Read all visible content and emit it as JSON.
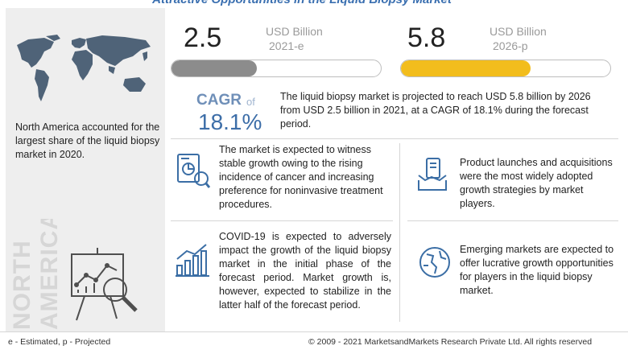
{
  "title": "Attractive Opportunities in the Liquid Biopsy Market",
  "chart_data": {
    "type": "bar",
    "categories": [
      "2021-e",
      "2026-p"
    ],
    "values": [
      2.5,
      5.8
    ],
    "unit": "USD Billion",
    "colors": [
      "#8c8c8c",
      "#f2bd1d"
    ]
  },
  "metrics": {
    "start": {
      "value": "2.5",
      "unit": "USD Billion",
      "year": "2021-e"
    },
    "end": {
      "value": "5.8",
      "unit": "USD Billion",
      "year": "2026-p"
    }
  },
  "cagr": {
    "label": "CAGR",
    "of": "of",
    "value": "18.1%",
    "summary": "The liquid biopsy market is projected to reach USD 5.8 billion by 2026 from USD 2.5 billion in 2021, at a CAGR of 18.1% during the forecast period."
  },
  "region": {
    "text": "North America accounted for the largest share of the liquid biopsy market in 2020.",
    "watermark_line1": "NORTH",
    "watermark_line2": "AMERICA"
  },
  "points": [
    {
      "icon": "tablet-chart-icon",
      "text": "The market is expected to witness stable growth owing to the rising incidence of cancer and increasing preference for noninvasive treatment procedures."
    },
    {
      "icon": "handshake-icon",
      "text": "Product launches and acquisitions were the most widely adopted growth strategies by market players."
    },
    {
      "icon": "growth-chart-icon",
      "text": "COVID-19 is expected to adversely impact the growth of the liquid biopsy market in the initial phase of the forecast period. Market growth is, however, expected to stabilize in the latter half of the forecast period."
    },
    {
      "icon": "globe-icon",
      "text": "Emerging markets are expected to offer lucrative growth opportunities for players in the liquid biopsy market."
    }
  ],
  "footer": {
    "note": "e - Estimated, p - Projected",
    "copyright": "© 2009 - 2021 MarketsandMarkets Research Private Ltd. All rights reserved"
  }
}
